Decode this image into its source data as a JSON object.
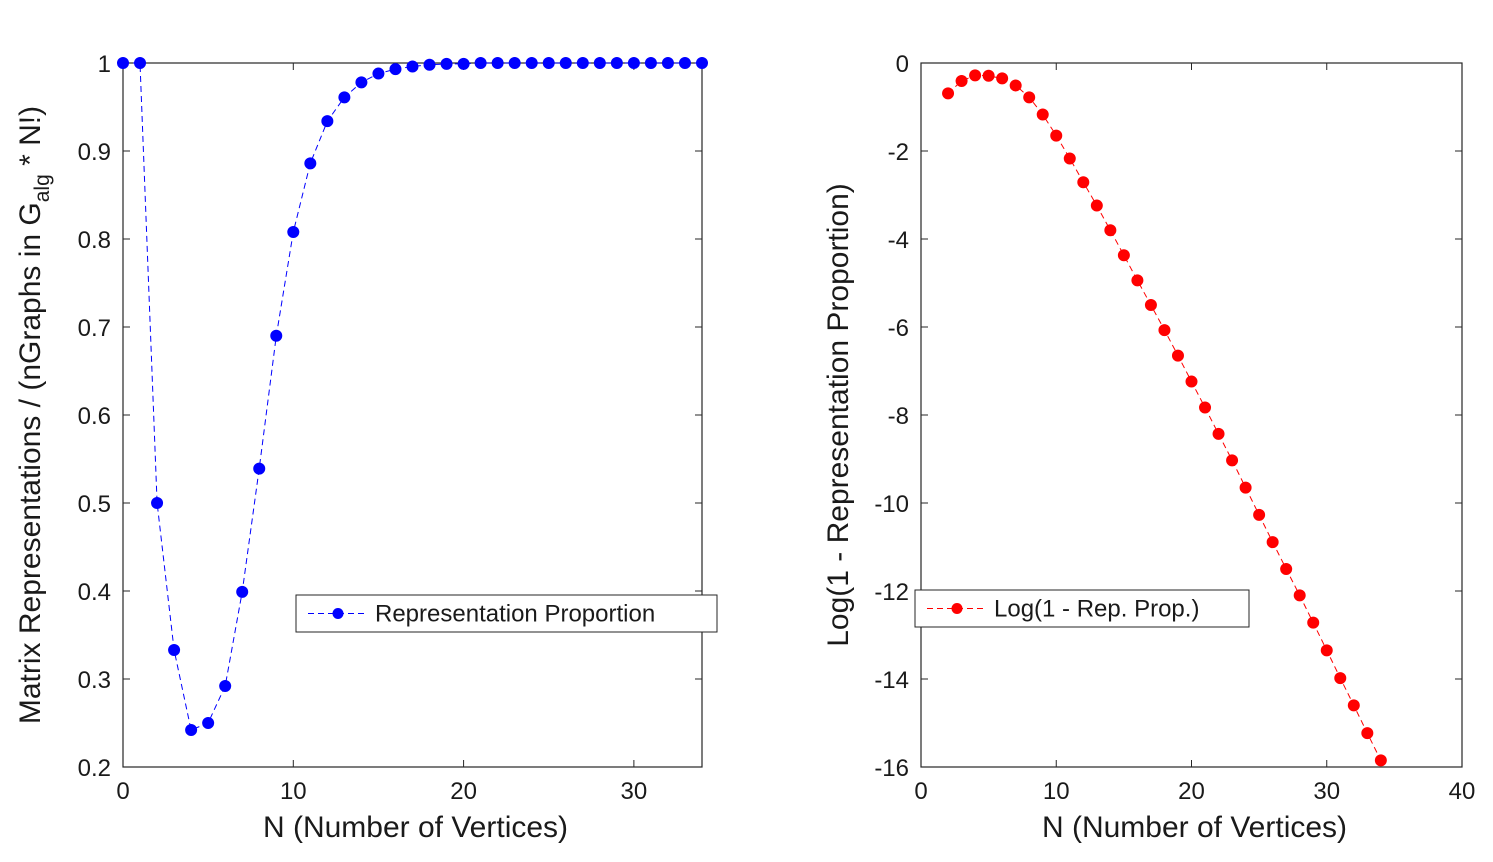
{
  "chart_data": [
    {
      "type": "line",
      "xlabel": "N (Number of Vertices)",
      "ylabel": "Matrix Representations / (nGraphs in G_alg * N!)",
      "ylabel_parts": {
        "prefix": "Matrix Representations / (nGraphs in G",
        "subscript": "alg",
        "suffix": " * N!)"
      },
      "xlim": [
        0,
        34
      ],
      "ylim": [
        0.2,
        1
      ],
      "xticks": [
        0,
        10,
        20,
        30
      ],
      "yticks": [
        0.2,
        0.3,
        0.4,
        0.5,
        0.6,
        0.7,
        0.8,
        0.9,
        1
      ],
      "ytick_labels": [
        "0.2",
        "0.3",
        "0.4",
        "0.5",
        "0.6",
        "0.7",
        "0.8",
        "0.9",
        "1"
      ],
      "grid": false,
      "legend_position": "middle-right",
      "series": [
        {
          "name": "Representation Proportion",
          "color": "#0000ff",
          "line_style": "dashed",
          "marker": "circle",
          "x": [
            0,
            1,
            2,
            3,
            4,
            5,
            6,
            7,
            8,
            9,
            10,
            11,
            12,
            13,
            14,
            15,
            16,
            17,
            18,
            19,
            20,
            21,
            22,
            23,
            24,
            25,
            26,
            27,
            28,
            29,
            30,
            31,
            32,
            33,
            34
          ],
          "y": [
            1,
            1,
            0.5,
            0.333,
            0.242,
            0.25,
            0.292,
            0.399,
            0.539,
            0.69,
            0.808,
            0.886,
            0.934,
            0.961,
            0.978,
            0.988,
            0.993,
            0.996,
            0.998,
            0.999,
            0.999,
            1,
            1,
            1,
            1,
            1,
            1,
            1,
            1,
            1,
            1,
            1,
            1,
            1,
            1
          ]
        }
      ]
    },
    {
      "type": "line",
      "xlabel": "N (Number of Vertices)",
      "ylabel": "Log(1 - Representation Proportion)",
      "xlim": [
        0,
        40
      ],
      "ylim": [
        -16,
        0
      ],
      "xticks": [
        0,
        10,
        20,
        30,
        40
      ],
      "yticks": [
        -16,
        -14,
        -12,
        -10,
        -8,
        -6,
        -4,
        -2,
        0
      ],
      "grid": false,
      "legend_position": "bottom-left",
      "series": [
        {
          "name": "Log(1 - Rep. Prop.)",
          "color": "#ff0000",
          "line_style": "dashed",
          "marker": "circle",
          "x": [
            2,
            3,
            4,
            5,
            6,
            7,
            8,
            9,
            10,
            11,
            12,
            13,
            14,
            15,
            16,
            17,
            18,
            19,
            20,
            21,
            22,
            23,
            24,
            25,
            26,
            27,
            28,
            29,
            30,
            31,
            32,
            33,
            34
          ],
          "y": [
            -0.69,
            -0.41,
            -0.28,
            -0.29,
            -0.35,
            -0.51,
            -0.78,
            -1.17,
            -1.65,
            -2.17,
            -2.71,
            -3.24,
            -3.8,
            -4.37,
            -4.94,
            -5.5,
            -6.07,
            -6.65,
            -7.24,
            -7.83,
            -8.43,
            -9.03,
            -9.65,
            -10.27,
            -10.89,
            -11.5,
            -12.1,
            -12.72,
            -13.35,
            -13.98,
            -14.6,
            -15.23,
            -15.85
          ]
        }
      ]
    }
  ]
}
